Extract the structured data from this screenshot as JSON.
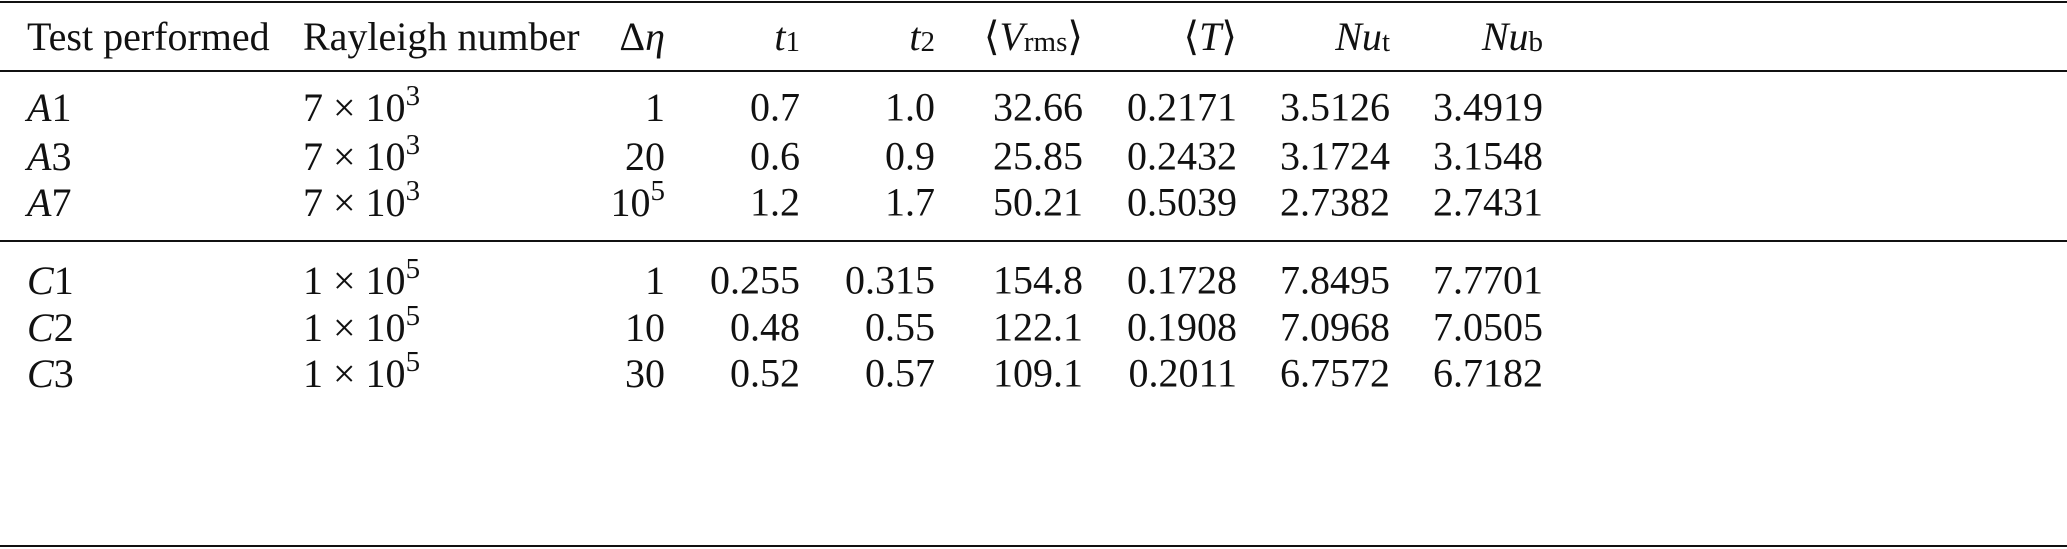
{
  "table": {
    "headers": [
      {
        "main": "Test performed"
      },
      {
        "main": "Rayleigh number"
      },
      {
        "pre": "Δ",
        "main": "η"
      },
      {
        "main": "t",
        "sub": "1"
      },
      {
        "main": "t",
        "sub": "2"
      },
      {
        "open": "⟨",
        "main": "V",
        "sub": "rms",
        "close": "⟩"
      },
      {
        "open": "⟨",
        "main": "T",
        "close": "⟩"
      },
      {
        "main": "Nu",
        "sub": "t"
      },
      {
        "main": "Nu",
        "sub": "b"
      }
    ],
    "groups": [
      [
        {
          "test": {
            "letter": "A",
            "num": "1"
          },
          "rayleigh": {
            "base": "7 × 10",
            "exp": "3"
          },
          "delta": {
            "base": "1"
          },
          "values": [
            "0.7",
            "1.0",
            "32.66",
            "0.2171",
            "3.5126",
            "3.4919"
          ]
        },
        {
          "test": {
            "letter": "A",
            "num": "3"
          },
          "rayleigh": {
            "base": "7 × 10",
            "exp": "3"
          },
          "delta": {
            "base": "20"
          },
          "values": [
            "0.6",
            "0.9",
            "25.85",
            "0.2432",
            "3.1724",
            "3.1548"
          ]
        },
        {
          "test": {
            "letter": "A",
            "num": "7"
          },
          "rayleigh": {
            "base": "7 × 10",
            "exp": "3"
          },
          "delta": {
            "base": "10",
            "exp": "5"
          },
          "values": [
            "1.2",
            "1.7",
            "50.21",
            "0.5039",
            "2.7382",
            "2.7431"
          ]
        }
      ],
      [
        {
          "test": {
            "letter": "C",
            "num": "1"
          },
          "rayleigh": {
            "base": "1 × 10",
            "exp": "5"
          },
          "delta": {
            "base": "1"
          },
          "values": [
            "0.255",
            "0.315",
            "154.8",
            "0.1728",
            "7.8495",
            "7.7701"
          ]
        },
        {
          "test": {
            "letter": "C",
            "num": "2"
          },
          "rayleigh": {
            "base": "1 × 10",
            "exp": "5"
          },
          "delta": {
            "base": "10"
          },
          "values": [
            "0.48",
            "0.55",
            "122.1",
            "0.1908",
            "7.0968",
            "7.0505"
          ]
        },
        {
          "test": {
            "letter": "C",
            "num": "3"
          },
          "rayleigh": {
            "base": "1 × 10",
            "exp": "5"
          },
          "delta": {
            "base": "30"
          },
          "values": [
            "0.52",
            "0.57",
            "109.1",
            "0.2011",
            "6.7572",
            "6.7182"
          ]
        }
      ]
    ]
  }
}
